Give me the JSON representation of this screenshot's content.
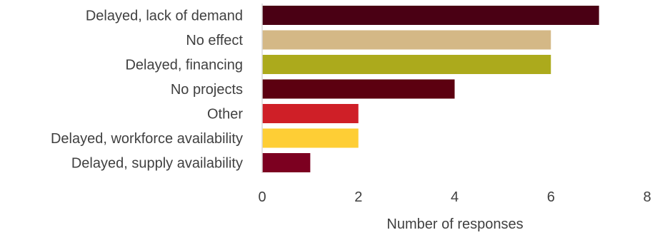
{
  "chart_data": {
    "type": "bar",
    "orientation": "horizontal",
    "categories": [
      "Delayed, lack of demand",
      "No effect",
      "Delayed, financing",
      "No projects",
      "Other",
      "Delayed, workforce availability",
      "Delayed, supply availability"
    ],
    "values": [
      7,
      6,
      6,
      4,
      2,
      2,
      1
    ],
    "colors": [
      "#4a0014",
      "#d4b886",
      "#acaa1c",
      "#5c0010",
      "#cf1f27",
      "#fece35",
      "#7c0020"
    ],
    "title": "",
    "xlabel": "Number of responses",
    "ylabel": "",
    "xlim": [
      0,
      8
    ],
    "x_ticks": [
      0,
      2,
      4,
      6,
      8
    ],
    "x_tick_labels": [
      "0",
      "2",
      "4",
      "6",
      "8"
    ],
    "grid": false,
    "legend": "none"
  }
}
